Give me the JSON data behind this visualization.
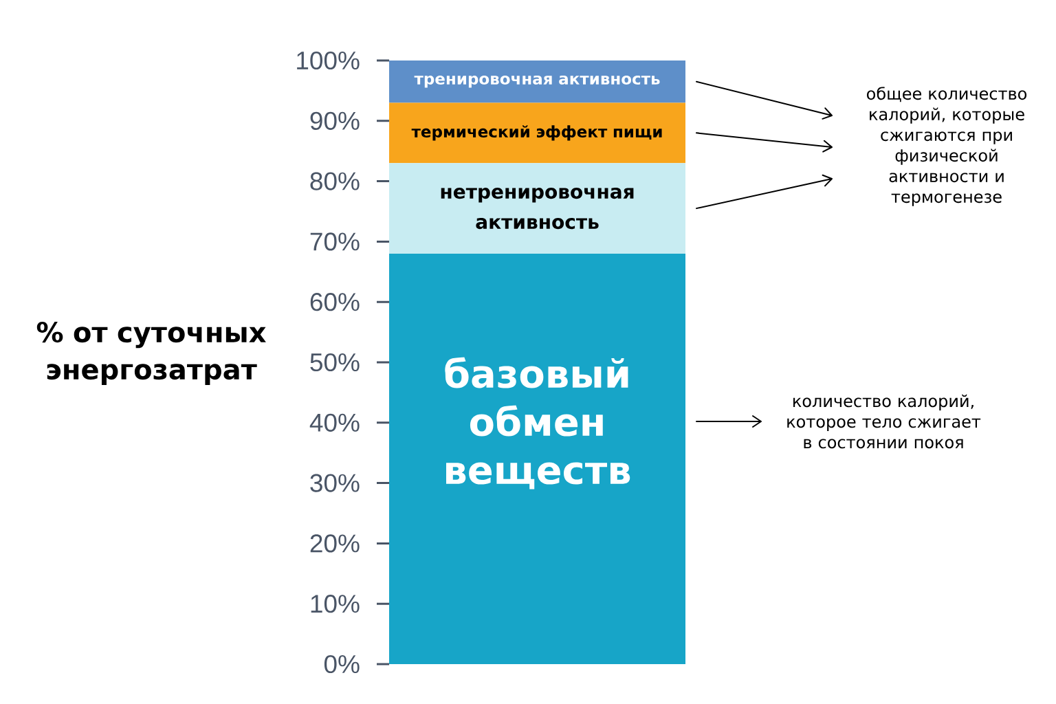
{
  "chart_data": {
    "type": "bar",
    "stacked": true,
    "categories": [
      null
    ],
    "ylabel": "% от суточных энергозатрат",
    "series": [
      {
        "name": "базовый обмен веществ",
        "color": "#17a5c8",
        "values": [
          68
        ]
      },
      {
        "name": "нетренировочная активность",
        "color": "#c8ecf2",
        "values": [
          15
        ]
      },
      {
        "name": "термический эффект пищи",
        "color": "#f8a51c",
        "values": [
          10
        ]
      },
      {
        "name": "тренировочная активность",
        "color": "#5e8fc9",
        "values": [
          7
        ]
      }
    ],
    "ylim": [
      0,
      100
    ],
    "yticks": [
      {
        "value": 0,
        "label": "0%"
      },
      {
        "value": 10,
        "label": "10%"
      },
      {
        "value": 20,
        "label": "20%"
      },
      {
        "value": 30,
        "label": "30%"
      },
      {
        "value": 40,
        "label": "40%"
      },
      {
        "value": 50,
        "label": "50%"
      },
      {
        "value": 60,
        "label": "60%"
      },
      {
        "value": 70,
        "label": "70%"
      },
      {
        "value": 80,
        "label": "80%"
      },
      {
        "value": 90,
        "label": "90%"
      },
      {
        "value": 100,
        "label": "100%"
      }
    ],
    "tick_labels": "y",
    "annotations": [
      "общее количество калорий, которые сжигаются при физической активности и термогенезе",
      "количество калорий, которое тело сжигает в состоянии покоя"
    ]
  }
}
